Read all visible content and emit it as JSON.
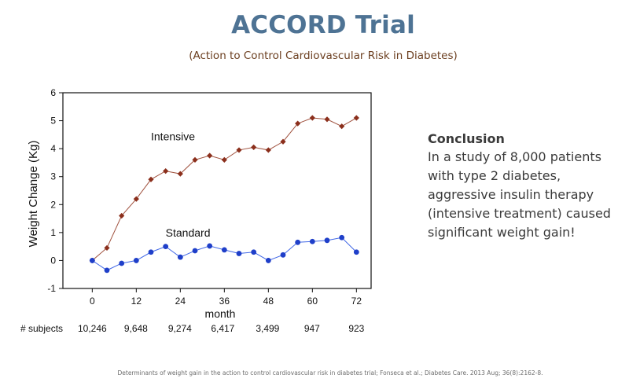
{
  "header": {
    "title": "ACCORD Trial",
    "subtitle": "(Action to Control Cardiovascular Risk in Diabetes)"
  },
  "conclusion": {
    "heading": "Conclusion",
    "text": "In a study of 8,000 patients with type 2 diabetes, aggressive insulin therapy (intensive treatment) caused significant weight gain!"
  },
  "footer": {
    "source": "Determinants of weight gain in the action to control cardiovascular risk in diabetes trial; Fonseca et al.; Diabetes Care. 2013 Aug; 36(8):2162-8."
  },
  "colors": {
    "title": "#4e7394",
    "intensive": "#8b2f1c",
    "standard": "#1f3fc9"
  },
  "chart_data": {
    "type": "line",
    "xlabel": "month",
    "ylabel": "Weight Change (Kg)",
    "xlim": [
      -8,
      76
    ],
    "ylim": [
      -1,
      6
    ],
    "x_ticks": [
      0,
      12,
      24,
      36,
      48,
      60,
      72
    ],
    "y_ticks": [
      -1,
      0,
      1,
      2,
      3,
      4,
      5,
      6
    ],
    "series": [
      {
        "name": "Intensive",
        "marker": "diamond",
        "x": [
          0,
          4,
          8,
          12,
          16,
          20,
          24,
          28,
          32,
          36,
          40,
          44,
          48,
          52,
          56,
          60,
          64,
          68,
          72
        ],
        "y": [
          0,
          0.45,
          1.6,
          2.2,
          2.9,
          3.2,
          3.1,
          3.6,
          3.75,
          3.6,
          3.95,
          4.05,
          3.95,
          4.25,
          4.9,
          5.1,
          5.05,
          4.8,
          5.1
        ]
      },
      {
        "name": "Standard",
        "marker": "circle",
        "x": [
          0,
          4,
          8,
          12,
          16,
          20,
          24,
          28,
          32,
          36,
          40,
          44,
          48,
          52,
          56,
          60,
          64,
          68,
          72
        ],
        "y": [
          0,
          -0.35,
          -0.1,
          0,
          0.3,
          0.5,
          0.12,
          0.35,
          0.52,
          0.38,
          0.25,
          0.3,
          0,
          0.2,
          0.65,
          0.68,
          0.72,
          0.82,
          0.3
        ]
      }
    ],
    "subjects": {
      "label": "# subjects",
      "months": [
        0,
        12,
        24,
        36,
        48,
        60,
        72
      ],
      "counts": [
        "10,246",
        "9,648",
        "9,274",
        "6,417",
        "3,499",
        "947",
        "923"
      ]
    }
  }
}
